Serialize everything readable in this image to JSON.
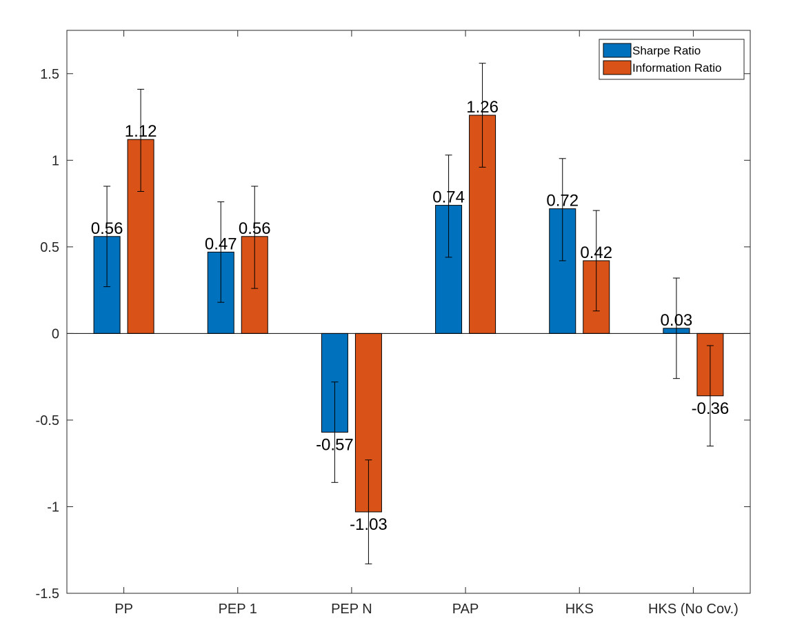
{
  "chart_data": {
    "type": "bar",
    "categories": [
      "PP",
      "PEP 1",
      "PEP N",
      "PAP",
      "HKS",
      "HKS (No Cov.)"
    ],
    "series": [
      {
        "name": "Sharpe Ratio",
        "color": "#0072BD",
        "values": [
          0.56,
          0.47,
          -0.57,
          0.74,
          0.72,
          0.03
        ],
        "labels": [
          "0.56",
          "0.47",
          "-0.57",
          "0.74",
          "0.72",
          "0.03"
        ],
        "error_low": [
          0.27,
          0.18,
          -0.86,
          0.44,
          0.42,
          -0.26
        ],
        "error_high": [
          0.85,
          0.76,
          -0.28,
          1.03,
          1.01,
          0.32
        ]
      },
      {
        "name": "Information Ratio",
        "color": "#D95319",
        "values": [
          1.12,
          0.56,
          -1.03,
          1.26,
          0.42,
          -0.36
        ],
        "labels": [
          "1.12",
          "0.56",
          "-1.03",
          "1.26",
          "0.42",
          "-0.36"
        ],
        "error_low": [
          0.82,
          0.26,
          -1.33,
          0.96,
          0.13,
          -0.65
        ],
        "error_high": [
          1.41,
          0.85,
          -0.73,
          1.56,
          0.71,
          -0.07
        ]
      }
    ],
    "ylim": [
      -1.5,
      1.75
    ],
    "yticks": [
      -1.5,
      -1,
      -0.5,
      0,
      0.5,
      1,
      1.5
    ],
    "ytick_labels": [
      "-1.5",
      "-1",
      "-0.5",
      "0",
      "0.5",
      "1",
      "1.5"
    ],
    "legend_position": "top-right",
    "grid": false,
    "title": "",
    "xlabel": "",
    "ylabel": ""
  }
}
